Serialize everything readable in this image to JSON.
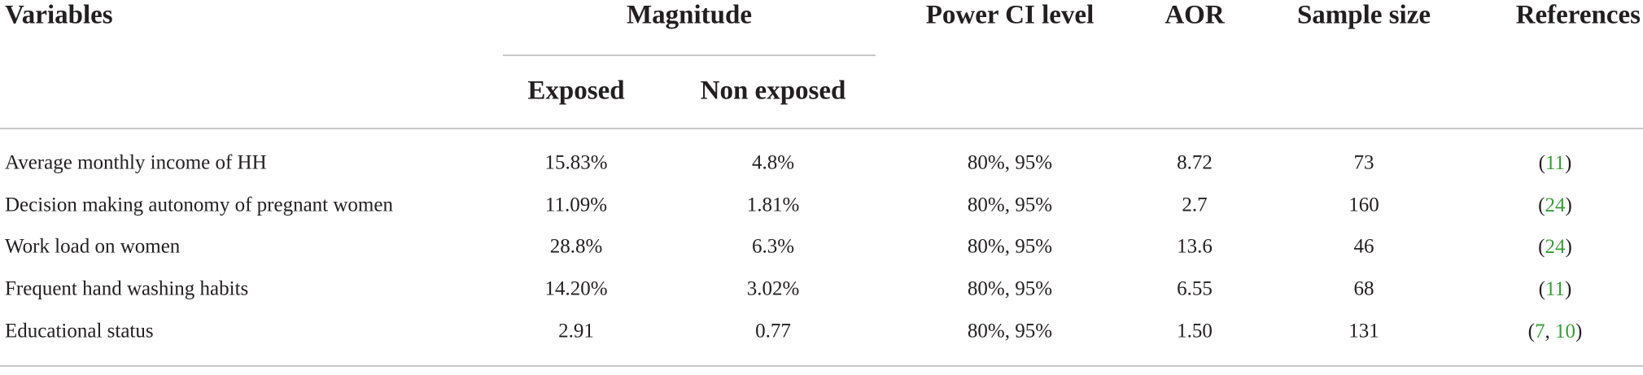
{
  "table": {
    "header": {
      "variables": "Variables",
      "magnitude": "Magnitude",
      "exposed": "Exposed",
      "non_exposed": "Non exposed",
      "power": "Power CI level",
      "aor": "AOR",
      "sample": "Sample size",
      "references": "References"
    },
    "rows": [
      [
        "Average monthly income of HH",
        "15.83%",
        "4.8%",
        "80%, 95%",
        "8.72",
        "73",
        [
          "(",
          "11",
          ")"
        ]
      ],
      [
        "Decision making autonomy of pregnant women",
        "11.09%",
        "1.81%",
        "80%, 95%",
        "2.7",
        "160",
        [
          "(",
          "24",
          ")"
        ]
      ],
      [
        "Work load on women",
        "28.8%",
        "6.3%",
        "80%, 95%",
        "13.6",
        "46",
        [
          "(",
          "24",
          ")"
        ]
      ],
      [
        "Frequent hand washing habits",
        "14.20%",
        "3.02%",
        "80%, 95%",
        "6.55",
        "68",
        [
          "(",
          "11",
          ")"
        ]
      ],
      [
        "Educational status",
        "2.91",
        "0.77",
        "80%, 95%",
        "1.50",
        "131",
        [
          "(",
          "7",
          ", ",
          "10",
          ")"
        ]
      ]
    ]
  }
}
